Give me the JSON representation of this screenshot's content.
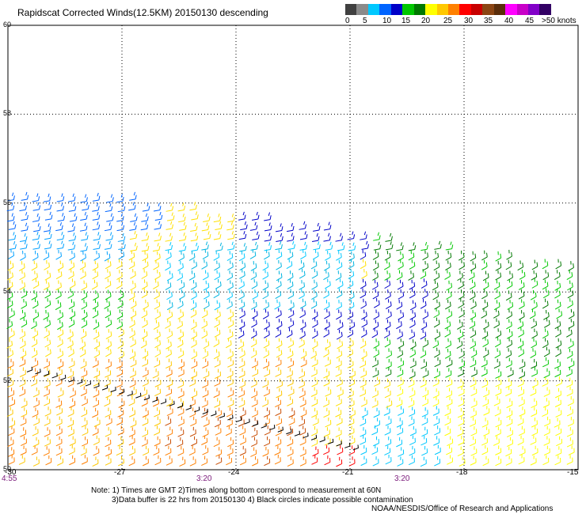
{
  "title": "Rapidscat Corrected Winds(12.5KM) 20150130 descending",
  "legend": {
    "colors": [
      "#404040",
      "#8a8a8a",
      "#00c8ff",
      "#0064ff",
      "#0000c8",
      "#00c800",
      "#007800",
      "#ffff00",
      "#ffc800",
      "#ff8000",
      "#ff0000",
      "#c80000",
      "#8b4513",
      "#5a2d0a",
      "#ff00ff",
      "#c800c8",
      "#8200c8",
      "#320064"
    ],
    "labels": [
      "0",
      "5",
      "10",
      "15",
      "20",
      "25",
      "30",
      "35",
      "40",
      "45",
      ">50 knots"
    ]
  },
  "axes": {
    "lat_labels": [
      "60",
      "58",
      "56",
      "54",
      "52",
      "50"
    ],
    "lon_labels": [
      "-30",
      "-27",
      "-24",
      "-21",
      "-18",
      "-15"
    ]
  },
  "times": {
    "left": "4:55",
    "mid1": "3:20",
    "mid2": "3:20"
  },
  "notes": {
    "line1": "Note: 1) Times are GMT 2)Times along bottom correspond to measurement at 60N",
    "line2": "3)Data buffer is 22 hrs from 20150130 4) Black circles indicate possible contamination",
    "line3": "NOAA/NESDIS/Office of Research and Applications"
  },
  "chart_data": {
    "type": "wind-barb-map",
    "xlabel": "",
    "ylabel": "",
    "xlim": [
      -30,
      -15
    ],
    "ylim": [
      50,
      60
    ],
    "speed_bands_knots": [
      {
        "min": 0,
        "max": 5
      },
      {
        "min": 5,
        "max": 10
      },
      {
        "min": 10,
        "max": 15
      },
      {
        "min": 15,
        "max": 20
      },
      {
        "min": 20,
        "max": 25
      },
      {
        "min": 25,
        "max": 30
      },
      {
        "min": 30,
        "max": 35
      },
      {
        "min": 35,
        "max": 40
      },
      {
        "min": 40,
        "max": 45
      },
      {
        "min": 45,
        "max": 50
      },
      {
        "min": 50,
        "max": null
      }
    ],
    "swath_edge_north": [
      [
        -30,
        56.2
      ],
      [
        -27,
        56.1
      ],
      [
        -24,
        55.7
      ],
      [
        -21,
        55.3
      ],
      [
        -18,
        54.9
      ],
      [
        -15,
        54.5
      ]
    ],
    "grid": true
  }
}
